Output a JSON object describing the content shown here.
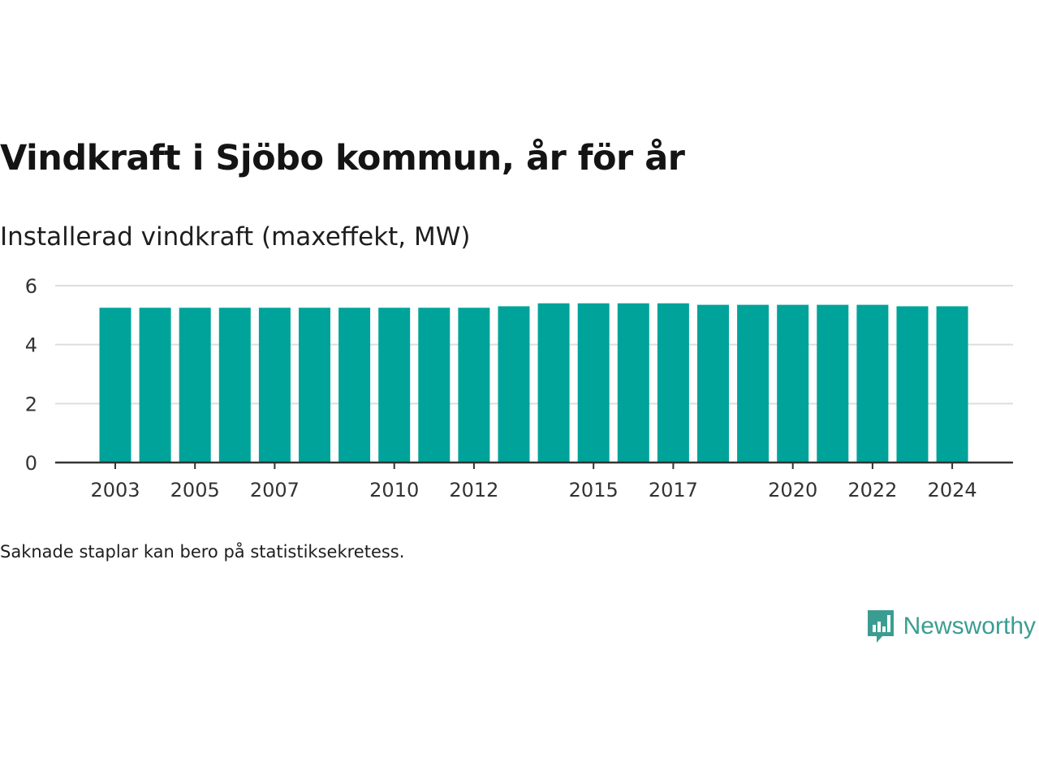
{
  "title": "Vindkraft i Sjöbo kommun, år för år",
  "subtitle": "Installerad vindkraft (maxeffekt, MW)",
  "note": "Saknade staplar kan bero på statistiksekretess.",
  "brand": {
    "name": "Newsworthy",
    "icon": "newsworthy-chart-bubble-icon",
    "color": "#3b9d92"
  },
  "chart_data": {
    "type": "bar",
    "categories": [
      2003,
      2004,
      2005,
      2006,
      2007,
      2008,
      2009,
      2010,
      2011,
      2012,
      2013,
      2014,
      2015,
      2016,
      2017,
      2018,
      2019,
      2020,
      2021,
      2022,
      2023,
      2024
    ],
    "values": [
      5.25,
      5.25,
      5.25,
      5.25,
      5.25,
      5.25,
      5.25,
      5.25,
      5.25,
      5.25,
      5.3,
      5.4,
      5.4,
      5.4,
      5.4,
      5.35,
      5.35,
      5.35,
      5.35,
      5.35,
      5.3,
      5.3
    ],
    "x_tick_labels": [
      2003,
      2005,
      2007,
      2010,
      2012,
      2015,
      2017,
      2020,
      2022,
      2024
    ],
    "y_ticks": [
      0,
      2,
      4,
      6
    ],
    "ylim": [
      0,
      6
    ],
    "grid": true,
    "bar_color": "#00a39a"
  }
}
